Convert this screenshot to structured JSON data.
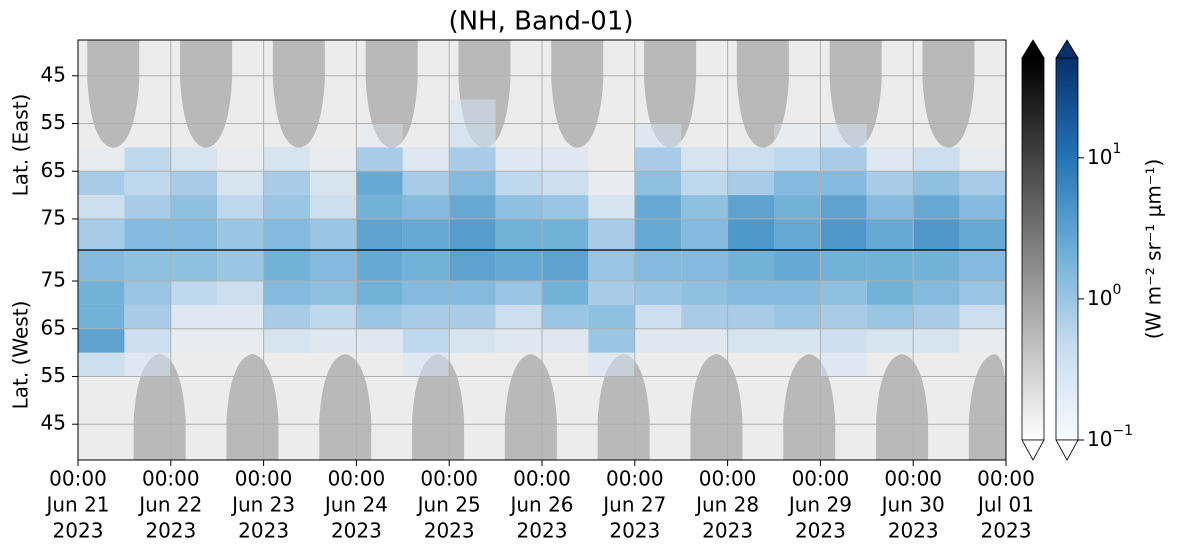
{
  "chart_data": [
    {
      "type": "heatmap",
      "title": "(NH, Band-01)",
      "ylabel": "Lat. (East)",
      "xlim": [
        "2023-06-21 00:00",
        "2023-07-01 00:00"
      ],
      "ylim": [
        81.5,
        37.5
      ],
      "yticks": [
        45,
        55,
        65,
        75
      ],
      "grid": true,
      "x_bins": [
        "2023-06-21 00:00",
        "2023-06-21 12:00",
        "2023-06-22 00:00",
        "2023-06-22 12:00",
        "2023-06-23 00:00",
        "2023-06-23 12:00",
        "2023-06-24 00:00",
        "2023-06-24 12:00",
        "2023-06-25 00:00",
        "2023-06-25 12:00",
        "2023-06-26 00:00",
        "2023-06-26 12:00",
        "2023-06-27 00:00",
        "2023-06-27 12:00",
        "2023-06-28 00:00",
        "2023-06-28 12:00",
        "2023-06-29 00:00",
        "2023-06-29 12:00",
        "2023-06-30 00:00",
        "2023-06-30 12:00",
        "2023-07-01 00:00"
      ],
      "y_bins": [
        40,
        45,
        50,
        55,
        60,
        65,
        70,
        75,
        81.5
      ],
      "values": [
        [
          0.1,
          0.1,
          0.1,
          0.1,
          0.1,
          0.1,
          0.1,
          0.1,
          0.1,
          0.1,
          0.1,
          0.1,
          0.1,
          0.1,
          0.1,
          0.1,
          0.1,
          0.1,
          0.1,
          0.1
        ],
        [
          0.1,
          0.1,
          0.1,
          0.1,
          0.1,
          0.1,
          0.1,
          0.1,
          0.1,
          0.1,
          0.1,
          0.1,
          0.1,
          0.1,
          0.1,
          0.1,
          0.1,
          0.1,
          0.1,
          0.1
        ],
        [
          0.1,
          0.1,
          0.1,
          0.1,
          0.1,
          0.1,
          0.1,
          0.1,
          0.3,
          0.1,
          0.1,
          0.1,
          0.1,
          0.1,
          0.1,
          0.1,
          0.1,
          0.1,
          0.1,
          0.1
        ],
        [
          0.1,
          0.1,
          0.1,
          0.1,
          0.1,
          0.1,
          0.2,
          0.1,
          0.4,
          0.1,
          0.1,
          0.1,
          0.3,
          0.1,
          0.1,
          0.2,
          0.3,
          0.1,
          0.1,
          0.1
        ],
        [
          0.2,
          0.6,
          0.4,
          0.2,
          0.4,
          0.2,
          0.8,
          0.3,
          0.8,
          0.3,
          0.3,
          0.1,
          0.8,
          0.4,
          0.5,
          0.6,
          0.8,
          0.3,
          0.5,
          0.2
        ],
        [
          0.8,
          0.6,
          0.8,
          0.4,
          0.8,
          0.4,
          2.5,
          0.8,
          1.5,
          0.6,
          0.5,
          0.2,
          1.2,
          0.6,
          0.8,
          1.5,
          1.5,
          0.8,
          1.2,
          0.8
        ],
        [
          0.5,
          0.8,
          1.2,
          0.6,
          1.0,
          0.5,
          2.0,
          1.5,
          2.5,
          1.2,
          1.0,
          0.4,
          2.5,
          1.2,
          3.0,
          2.0,
          3.0,
          1.5,
          2.5,
          1.5
        ],
        [
          0.8,
          1.5,
          1.5,
          1.0,
          1.5,
          1.0,
          3.0,
          2.5,
          3.5,
          2.0,
          2.0,
          0.8,
          2.5,
          1.5,
          4.0,
          2.5,
          4.0,
          2.5,
          4.0,
          2.5
        ]
      ],
      "colorbar": {
        "label": "(W m⁻² sr⁻¹ μm⁻¹)",
        "log": true,
        "clim": [
          0.1,
          51
        ],
        "colors": [
          "#f7fbff",
          "#c6dbef",
          "#6baed6",
          "#2171b5",
          "#08306b"
        ],
        "ticks": [
          {
            "value": 0.1,
            "label": "10",
            "exponent": "−1"
          },
          {
            "value": 1,
            "label": "10",
            "exponent": "0"
          },
          {
            "value": 10,
            "label": "10",
            "exponent": "1"
          }
        ]
      }
    },
    {
      "type": "heatmap",
      "ylabel": "Lat. (West)",
      "xlim": [
        "2023-06-21 00:00",
        "2023-07-01 00:00"
      ],
      "ylim": [
        37.5,
        81.5
      ],
      "yticks": [
        45,
        55,
        65,
        75
      ],
      "grid": true,
      "xticks": [
        {
          "value": "2023-06-21 00:00",
          "label": [
            "00:00",
            "Jun 21",
            "2023"
          ]
        },
        {
          "value": "2023-06-22 00:00",
          "label": [
            "00:00",
            "Jun 22",
            "2023"
          ]
        },
        {
          "value": "2023-06-23 00:00",
          "label": [
            "00:00",
            "Jun 23",
            "2023"
          ]
        },
        {
          "value": "2023-06-24 00:00",
          "label": [
            "00:00",
            "Jun 24",
            "2023"
          ]
        },
        {
          "value": "2023-06-25 00:00",
          "label": [
            "00:00",
            "Jun 25",
            "2023"
          ]
        },
        {
          "value": "2023-06-26 00:00",
          "label": [
            "00:00",
            "Jun 26",
            "2023"
          ]
        },
        {
          "value": "2023-06-27 00:00",
          "label": [
            "00:00",
            "Jun 27",
            "2023"
          ]
        },
        {
          "value": "2023-06-28 00:00",
          "label": [
            "00:00",
            "Jun 28",
            "2023"
          ]
        },
        {
          "value": "2023-06-29 00:00",
          "label": [
            "00:00",
            "Jun 29",
            "2023"
          ]
        },
        {
          "value": "2023-06-30 00:00",
          "label": [
            "00:00",
            "Jun 30",
            "2023"
          ]
        },
        {
          "value": "2023-07-01 00:00",
          "label": [
            "00:00",
            "Jul 01",
            "2023"
          ]
        }
      ],
      "x_bins": [
        "2023-06-21 00:00",
        "2023-06-21 12:00",
        "2023-06-22 00:00",
        "2023-06-22 12:00",
        "2023-06-23 00:00",
        "2023-06-23 12:00",
        "2023-06-24 00:00",
        "2023-06-24 12:00",
        "2023-06-25 00:00",
        "2023-06-25 12:00",
        "2023-06-26 00:00",
        "2023-06-26 12:00",
        "2023-06-27 00:00",
        "2023-06-27 12:00",
        "2023-06-28 00:00",
        "2023-06-28 12:00",
        "2023-06-29 00:00",
        "2023-06-29 12:00",
        "2023-06-30 00:00",
        "2023-06-30 12:00",
        "2023-07-01 00:00"
      ],
      "y_bins": [
        40,
        45,
        50,
        55,
        60,
        65,
        70,
        75,
        81.5
      ],
      "values": [
        [
          0.1,
          0.1,
          0.1,
          0.1,
          0.1,
          0.1,
          0.1,
          0.1,
          0.1,
          0.1,
          0.1,
          0.1,
          0.1,
          0.1,
          0.1,
          0.1,
          0.1,
          0.1,
          0.1,
          0.1
        ],
        [
          0.1,
          0.1,
          0.1,
          0.1,
          0.1,
          0.1,
          0.1,
          0.1,
          0.1,
          0.1,
          0.1,
          0.1,
          0.1,
          0.1,
          0.1,
          0.1,
          0.1,
          0.1,
          0.1,
          0.1
        ],
        [
          0.1,
          0.1,
          0.1,
          0.1,
          0.1,
          0.1,
          0.1,
          0.1,
          0.1,
          0.1,
          0.1,
          0.1,
          0.1,
          0.1,
          0.1,
          0.1,
          0.1,
          0.1,
          0.1,
          0.1
        ],
        [
          0.5,
          0.3,
          0.1,
          0.1,
          0.1,
          0.1,
          0.1,
          0.3,
          0.1,
          0.1,
          0.1,
          0.3,
          0.1,
          0.1,
          0.1,
          0.1,
          0.3,
          0.1,
          0.1,
          0.1
        ],
        [
          3.0,
          0.5,
          0.2,
          0.2,
          0.4,
          0.3,
          0.3,
          0.6,
          0.4,
          0.3,
          0.3,
          1.0,
          0.3,
          0.3,
          0.4,
          0.4,
          0.5,
          0.4,
          0.4,
          0.2
        ],
        [
          2.0,
          0.8,
          0.3,
          0.3,
          0.8,
          0.6,
          1.0,
          0.8,
          0.8,
          0.5,
          1.0,
          1.2,
          0.5,
          0.8,
          0.8,
          1.0,
          0.8,
          1.0,
          0.8,
          0.5
        ],
        [
          2.0,
          1.0,
          0.6,
          0.5,
          1.5,
          1.2,
          2.0,
          1.5,
          1.5,
          1.0,
          2.0,
          0.8,
          1.0,
          1.2,
          1.5,
          1.5,
          1.2,
          2.0,
          1.5,
          1.0
        ],
        [
          1.5,
          1.2,
          1.2,
          1.0,
          2.0,
          1.5,
          2.5,
          2.0,
          3.0,
          2.5,
          3.0,
          1.0,
          1.5,
          1.5,
          2.0,
          2.5,
          2.0,
          2.0,
          2.0,
          1.5
        ]
      ]
    }
  ]
}
